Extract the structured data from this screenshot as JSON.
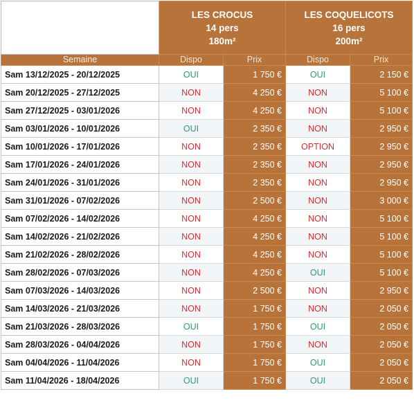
{
  "houses": [
    {
      "name": "LES CROCUS",
      "capacity": "14 pers",
      "area": "180m²"
    },
    {
      "name": "LES COQUELICOTS",
      "capacity": "16 pers",
      "area": "200m²"
    }
  ],
  "column_headers": {
    "week": "Semaine",
    "dispo": "Dispo",
    "prix": "Prix"
  },
  "status_colors": {
    "OUI": "#2e9a7a",
    "NON": "#e0282b",
    "OPTION": "#e0282b"
  },
  "rows": [
    {
      "week": "Sam 13/12/2025 - 20/12/2025",
      "crocus_dispo": "OUI",
      "crocus_prix": "1 750 €",
      "coq_dispo": "OUI",
      "coq_prix": "2 150 €"
    },
    {
      "week": "Sam 20/12/2025 - 27/12/2025",
      "crocus_dispo": "NON",
      "crocus_prix": "4 250 €",
      "coq_dispo": "NON",
      "coq_prix": "5 100 €"
    },
    {
      "week": "Sam 27/12/2025 - 03/01/2026",
      "crocus_dispo": "NON",
      "crocus_prix": "4 250 €",
      "coq_dispo": "NON",
      "coq_prix": "5 100 €"
    },
    {
      "week": "Sam 03/01/2026 - 10/01/2026",
      "crocus_dispo": "OUI",
      "crocus_prix": "2 350 €",
      "coq_dispo": "NON",
      "coq_prix": "2 950 €"
    },
    {
      "week": "Sam 10/01/2026 - 17/01/2026",
      "crocus_dispo": "NON",
      "crocus_prix": "2 350 €",
      "coq_dispo": "OPTION",
      "coq_prix": "2 950 €"
    },
    {
      "week": "Sam 17/01/2026 - 24/01/2026",
      "crocus_dispo": "NON",
      "crocus_prix": "2 350 €",
      "coq_dispo": "NON",
      "coq_prix": "2 950 €"
    },
    {
      "week": "Sam 24/01/2026 - 31/01/2026",
      "crocus_dispo": "NON",
      "crocus_prix": "2 350 €",
      "coq_dispo": "NON",
      "coq_prix": "2 950 €"
    },
    {
      "week": "Sam 31/01/2026 - 07/02/2026",
      "crocus_dispo": "NON",
      "crocus_prix": "2 500 €",
      "coq_dispo": "NON",
      "coq_prix": "3 000 €"
    },
    {
      "week": "Sam 07/02/2026 - 14/02/2026",
      "crocus_dispo": "NON",
      "crocus_prix": "4 250 €",
      "coq_dispo": "NON",
      "coq_prix": "5 100 €"
    },
    {
      "week": "Sam 14/02/2026 - 21/02/2026",
      "crocus_dispo": "NON",
      "crocus_prix": "4 250 €",
      "coq_dispo": "NON",
      "coq_prix": "5 100 €"
    },
    {
      "week": "Sam 21/02/2026 - 28/02/2026",
      "crocus_dispo": "NON",
      "crocus_prix": "4 250 €",
      "coq_dispo": "NON",
      "coq_prix": "5 100 €"
    },
    {
      "week": "Sam 28/02/2026 - 07/03/2026",
      "crocus_dispo": "NON",
      "crocus_prix": "4 250 €",
      "coq_dispo": "OUI",
      "coq_prix": "5 100 €"
    },
    {
      "week": "Sam 07/03/2026 - 14/03/2026",
      "crocus_dispo": "NON",
      "crocus_prix": "2 500 €",
      "coq_dispo": "NON",
      "coq_prix": "2 950 €"
    },
    {
      "week": "Sam 14/03/2026 - 21/03/2026",
      "crocus_dispo": "NON",
      "crocus_prix": "1 750 €",
      "coq_dispo": "NON",
      "coq_prix": "2 050 €"
    },
    {
      "week": "Sam 21/03/2026 - 28/03/2026",
      "crocus_dispo": "OUI",
      "crocus_prix": "1 750 €",
      "coq_dispo": "OUI",
      "coq_prix": "2 050 €"
    },
    {
      "week": "Sam 28/03/2026 - 04/04/2026",
      "crocus_dispo": "NON",
      "crocus_prix": "1 750 €",
      "coq_dispo": "NON",
      "coq_prix": "2 050 €"
    },
    {
      "week": "Sam 04/04/2026 - 11/04/2026",
      "crocus_dispo": "NON",
      "crocus_prix": "1 750 €",
      "coq_dispo": "OUI",
      "coq_prix": "2 050 €"
    },
    {
      "week": "Sam 11/04/2026 - 18/04/2026",
      "crocus_dispo": "OUI",
      "crocus_prix": "1 750 €",
      "coq_dispo": "OUI",
      "coq_prix": "2 050 €"
    }
  ]
}
